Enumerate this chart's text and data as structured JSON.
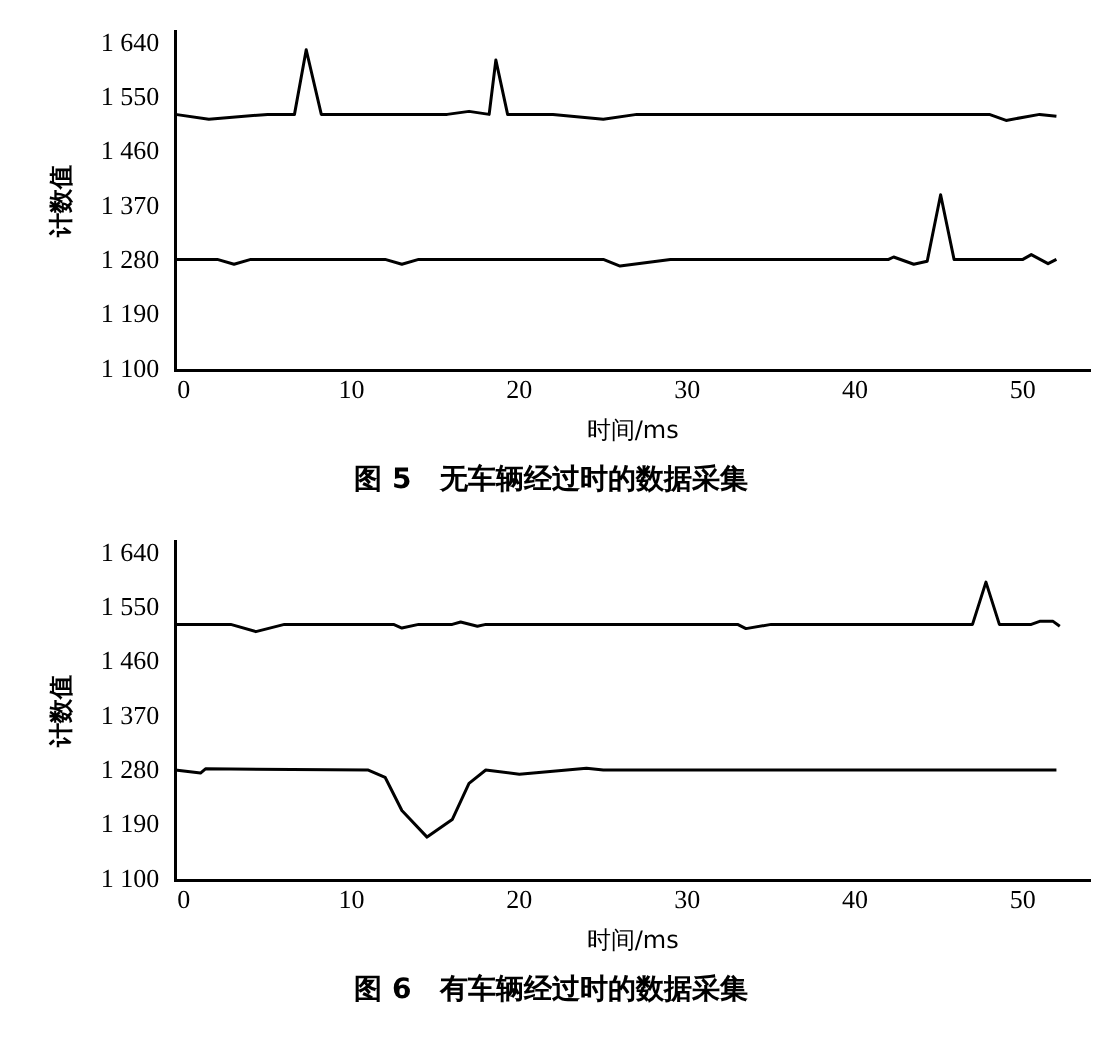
{
  "chart_data": [
    {
      "type": "line",
      "title": "图 5　无车辆经过时的数据采集",
      "xlabel": "时间/ms",
      "ylabel": "计数值",
      "xlim": [
        -0.5,
        54
      ],
      "ylim": [
        1100,
        1660
      ],
      "xticks": [
        0,
        10,
        20,
        30,
        40,
        50
      ],
      "yticks": [
        {
          "value": 1100,
          "label": "1 100"
        },
        {
          "value": 1190,
          "label": "1 190"
        },
        {
          "value": 1280,
          "label": "1 280"
        },
        {
          "value": 1370,
          "label": "1 370"
        },
        {
          "value": 1460,
          "label": "1 460"
        },
        {
          "value": 1550,
          "label": "1 550"
        },
        {
          "value": 1640,
          "label": "1 640"
        }
      ],
      "grid": false,
      "legend": false,
      "marker": "none",
      "line_style": "solid",
      "series": [
        {
          "color": "#000000",
          "x": [
            -0.5,
            1.5,
            5,
            6.6,
            7.3,
            8.2,
            15.7,
            17,
            18.2,
            18.6,
            19.3,
            22,
            25,
            27,
            48,
            49,
            51,
            52
          ],
          "values": [
            1523,
            1515,
            1523,
            1523,
            1630,
            1523,
            1523,
            1528,
            1523,
            1613,
            1523,
            1523,
            1515,
            1523,
            1523,
            1513,
            1523,
            1520
          ]
        },
        {
          "color": "#000000",
          "x": [
            -0.5,
            2,
            3,
            4,
            12,
            13,
            14,
            25,
            26,
            29,
            42,
            42.3,
            43.5,
            44.3,
            45.1,
            45.9,
            50,
            50.5,
            51.5,
            52
          ],
          "values": [
            1283,
            1283,
            1275,
            1283,
            1283,
            1275,
            1283,
            1283,
            1272,
            1283,
            1283,
            1287,
            1275,
            1280,
            1390,
            1283,
            1283,
            1291,
            1276,
            1283
          ]
        }
      ]
    },
    {
      "type": "line",
      "title": "图 6　有车辆经过时的数据采集",
      "xlabel": "时间/ms",
      "ylabel": "计数值",
      "xlim": [
        -0.5,
        54
      ],
      "ylim": [
        1100,
        1660
      ],
      "xticks": [
        0,
        10,
        20,
        30,
        40,
        50
      ],
      "yticks": [
        {
          "value": 1100,
          "label": "1 100"
        },
        {
          "value": 1190,
          "label": "1 190"
        },
        {
          "value": 1280,
          "label": "1 280"
        },
        {
          "value": 1370,
          "label": "1 370"
        },
        {
          "value": 1460,
          "label": "1 460"
        },
        {
          "value": 1550,
          "label": "1 550"
        },
        {
          "value": 1640,
          "label": "1 640"
        }
      ],
      "grid": false,
      "legend": false,
      "marker": "none",
      "line_style": "solid",
      "series": [
        {
          "color": "#000000",
          "x": [
            -0.5,
            2.8,
            4.3,
            6,
            12.5,
            13,
            14,
            16,
            16.5,
            17.5,
            18,
            33,
            33.5,
            35,
            47,
            47.8,
            48.6,
            50.5,
            51,
            51.8,
            52.2
          ],
          "values": [
            1523,
            1523,
            1511,
            1523,
            1523,
            1517,
            1523,
            1523,
            1527,
            1520,
            1523,
            1523,
            1516,
            1523,
            1523,
            1593,
            1523,
            1523,
            1528,
            1528,
            1520
          ]
        },
        {
          "color": "#000000",
          "x": [
            -0.5,
            1,
            1.3,
            11,
            12,
            13,
            14.5,
            16,
            17,
            18,
            20,
            24,
            25,
            52
          ],
          "values": [
            1282,
            1277,
            1284,
            1282,
            1270,
            1215,
            1171,
            1200,
            1260,
            1282,
            1275,
            1285,
            1282,
            1282
          ]
        }
      ]
    }
  ]
}
